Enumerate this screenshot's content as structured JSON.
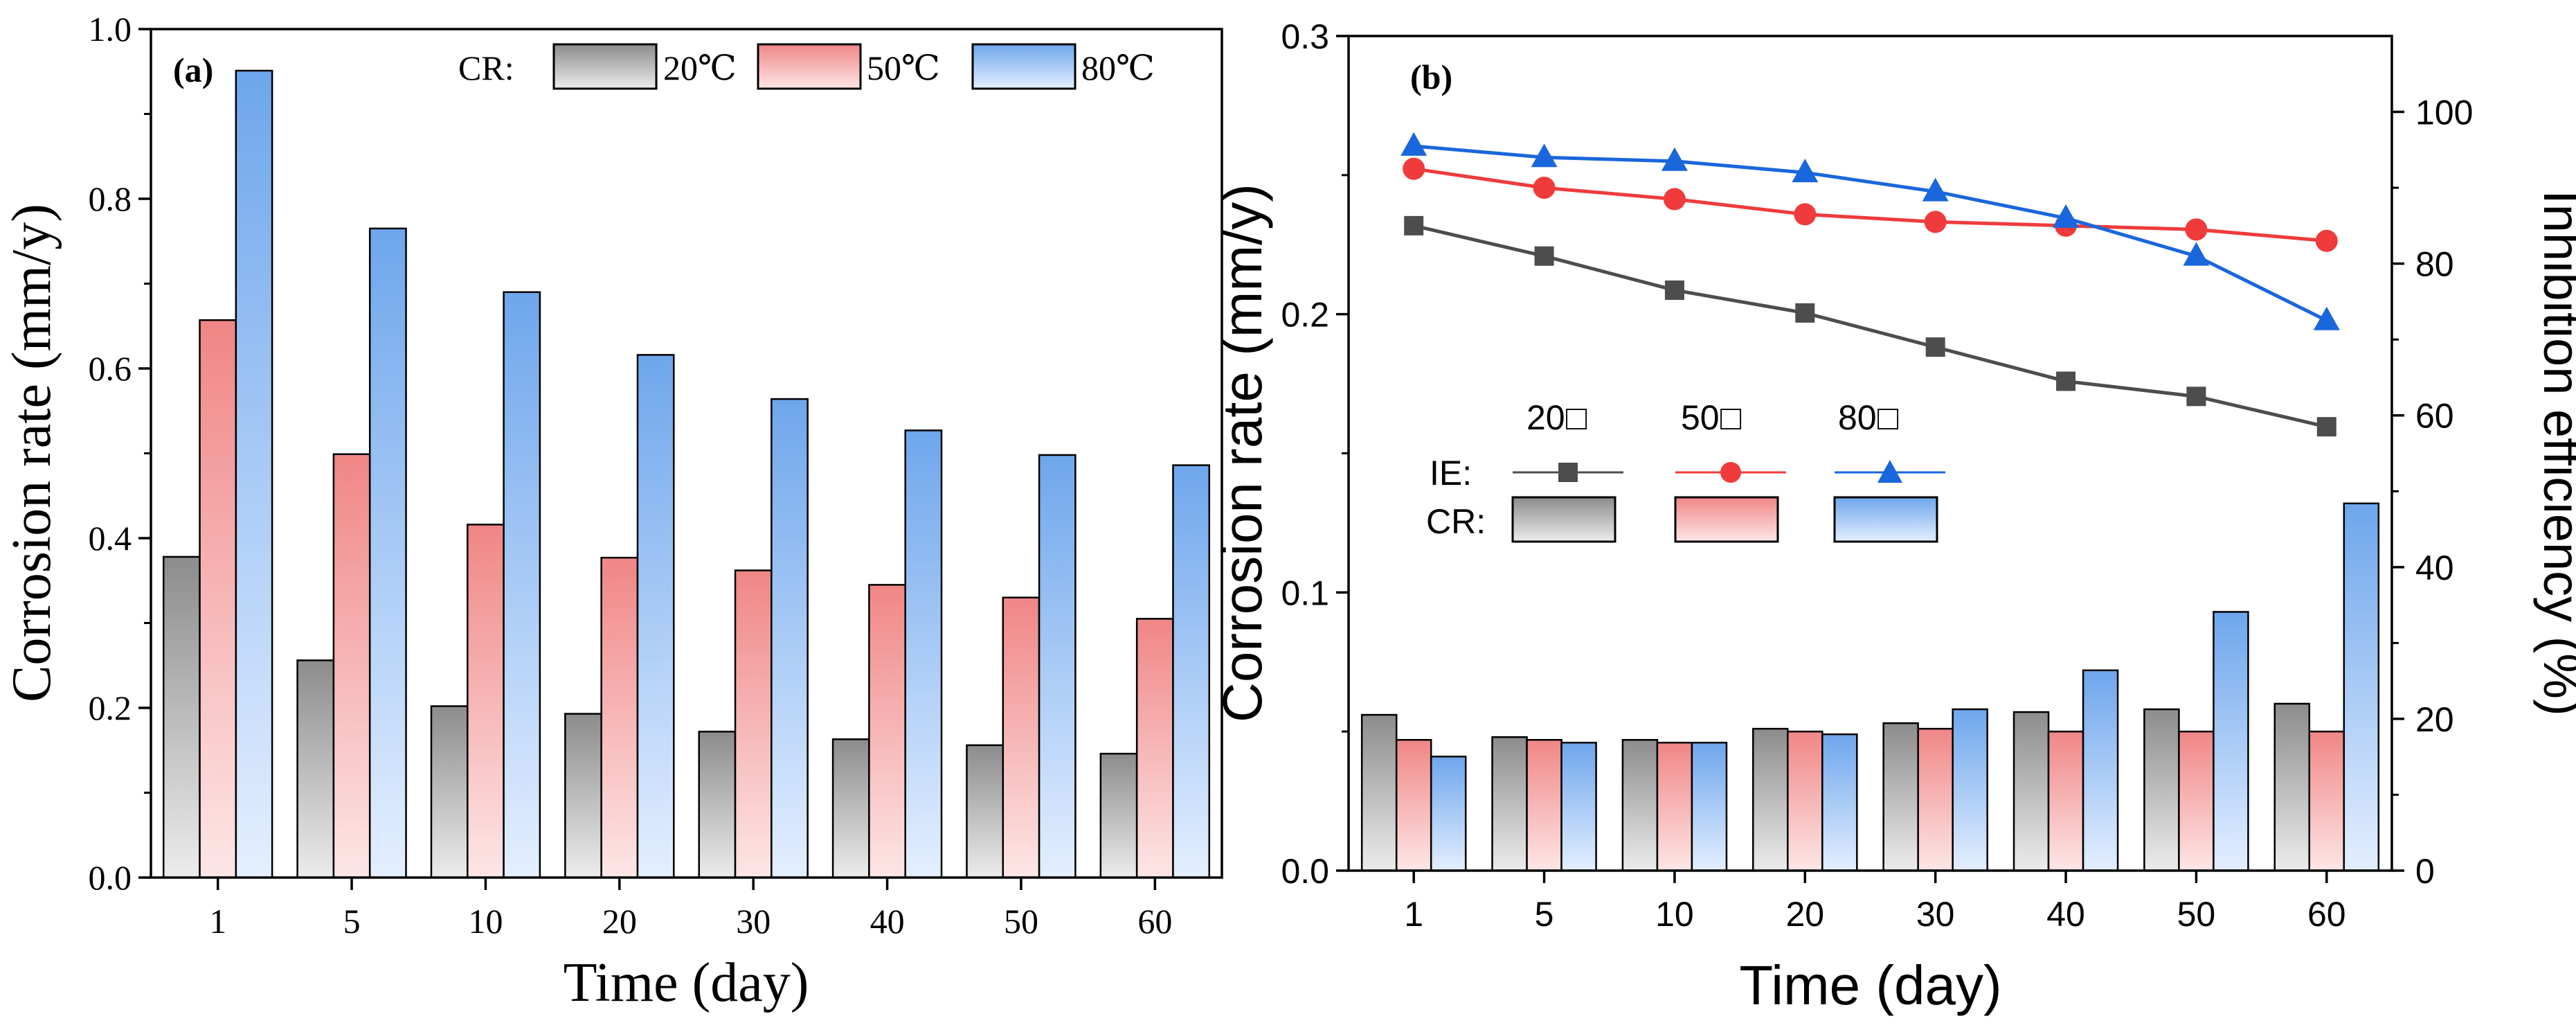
{
  "colors": {
    "gray_top": "#8c8c8c",
    "gray_bottom": "#ececec",
    "red_top": "#f08686",
    "red_bottom": "#fde6e6",
    "blue_top": "#6ea6ec",
    "blue_bottom": "#e4efff",
    "ie_gray": "#4d4d4d",
    "ie_red": "#ef3b3b",
    "ie_blue": "#1a66dc"
  },
  "chart_data": [
    {
      "type": "bar",
      "panel_label": "(a)",
      "categories": [
        "1",
        "5",
        "10",
        "20",
        "30",
        "40",
        "50",
        "60"
      ],
      "series": [
        {
          "name": "20℃",
          "values": [
            0.378,
            0.256,
            0.202,
            0.193,
            0.172,
            0.163,
            0.156,
            0.146
          ]
        },
        {
          "name": "50℃",
          "values": [
            0.657,
            0.499,
            0.416,
            0.377,
            0.362,
            0.345,
            0.33,
            0.305
          ]
        },
        {
          "name": "80℃",
          "values": [
            0.951,
            0.765,
            0.69,
            0.616,
            0.564,
            0.527,
            0.498,
            0.486
          ]
        }
      ],
      "legend_title": "CR:",
      "title": "",
      "xlabel": "Time (day)",
      "ylabel": "Corrosion rate (mm/y)",
      "ylim": [
        0,
        1.0
      ],
      "yticks": [
        "0.0",
        "0.2",
        "0.4",
        "0.6",
        "0.8",
        "1.0"
      ]
    },
    {
      "type": "bar+line",
      "panel_label": "(b)",
      "categories": [
        "1",
        "5",
        "10",
        "20",
        "30",
        "40",
        "50",
        "60"
      ],
      "bar_series": [
        {
          "name": "20",
          "values": [
            0.056,
            0.048,
            0.047,
            0.051,
            0.053,
            0.057,
            0.058,
            0.06
          ]
        },
        {
          "name": "50",
          "values": [
            0.047,
            0.047,
            0.046,
            0.05,
            0.051,
            0.05,
            0.05,
            0.05
          ]
        },
        {
          "name": "80",
          "values": [
            0.041,
            0.046,
            0.046,
            0.049,
            0.058,
            0.072,
            0.093,
            0.132
          ]
        }
      ],
      "line_series": [
        {
          "name": "20",
          "values": [
            85.0,
            81.0,
            76.5,
            73.5,
            69.0,
            64.5,
            62.5,
            58.5
          ]
        },
        {
          "name": "50",
          "values": [
            92.5,
            90.0,
            88.5,
            86.5,
            85.5,
            85.0,
            84.5,
            83.0
          ]
        },
        {
          "name": "80",
          "values": [
            95.5,
            94.0,
            93.5,
            92.0,
            89.5,
            86.0,
            81.0,
            72.5
          ]
        }
      ],
      "legend_header": [
        "20",
        "50",
        "80"
      ],
      "legend_ie_label": "IE:",
      "legend_cr_label": "CR:",
      "xlabel": "Time (day)",
      "ylabel_left": "Corrosion rate (mm/y)",
      "ylabel_right": "Inhibition efficiency (%)",
      "ylim_left": [
        0,
        0.3
      ],
      "ylim_right": [
        0,
        110
      ],
      "yticks_left": [
        "0.0",
        "0.1",
        "0.2",
        "0.3"
      ],
      "yticks_right": [
        "0",
        "20",
        "40",
        "60",
        "80",
        "100"
      ]
    }
  ]
}
